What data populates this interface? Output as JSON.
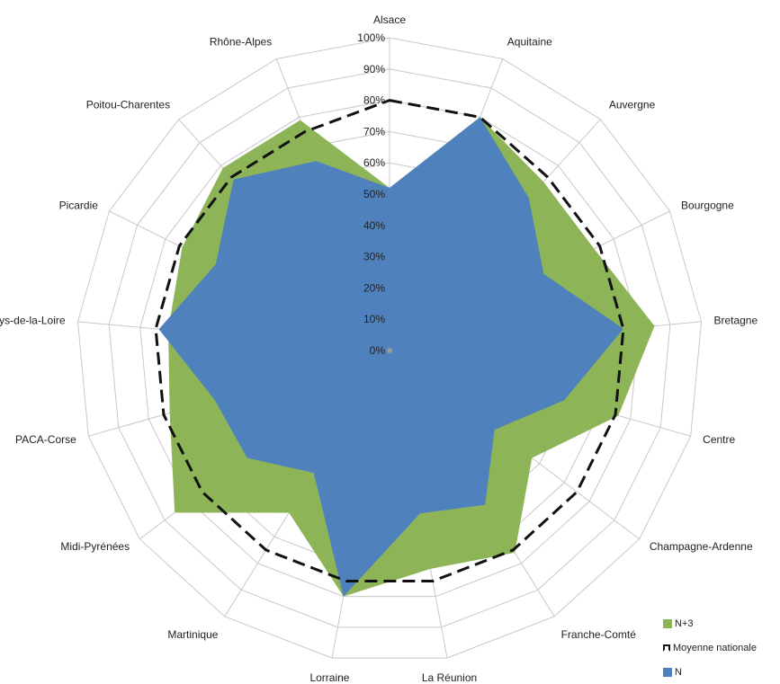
{
  "chart_data": {
    "type": "radar",
    "categories": [
      "Alsace",
      "Aquitaine",
      "Auvergne",
      "Bourgogne",
      "Bretagne",
      "Centre",
      "Champagne-Ardenne",
      "Franche-Comté",
      "La Réunion",
      "Lorraine",
      "Martinique",
      "Midi-Pyrénées",
      "PACA-Corse",
      "Pays-de-la-Loire",
      "Picardie",
      "Poitou-Charentes",
      "Rhône-Alpes"
    ],
    "ticks": [
      "0%",
      "10%",
      "20%",
      "30%",
      "40%",
      "50%",
      "60%",
      "70%",
      "80%",
      "90%",
      "100%"
    ],
    "rmax": 100,
    "series": [
      {
        "name": "N+3",
        "style": "area",
        "color": "#8db558",
        "values": [
          52,
          80,
          73,
          73,
          85,
          76,
          57,
          76,
          71,
          80,
          61,
          86,
          73,
          71,
          74,
          79,
          79
        ]
      },
      {
        "name": "Moyenne nationale",
        "style": "dashed-line",
        "color": "#111111",
        "values": [
          80,
          80,
          75,
          75,
          75,
          75,
          75,
          75,
          75,
          75,
          75,
          75,
          75,
          75,
          75,
          75,
          75
        ]
      },
      {
        "name": "N",
        "style": "area",
        "color": "#4f81bd",
        "values": [
          52,
          80,
          66,
          55,
          75,
          58,
          42,
          58,
          53,
          80,
          46,
          57,
          58,
          74,
          62,
          74,
          65
        ]
      }
    ],
    "legend_position": "bottom-right",
    "grid": true
  },
  "legend": [
    {
      "label": "N+3",
      "color": "#8db558",
      "kind": "box"
    },
    {
      "label": "Moyenne nationale",
      "color": "#111111",
      "kind": "line"
    },
    {
      "label": "N",
      "color": "#4f81bd",
      "kind": "box"
    }
  ]
}
